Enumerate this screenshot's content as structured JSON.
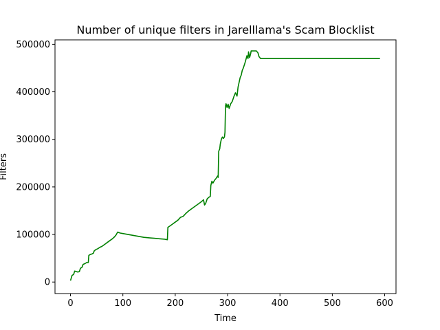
{
  "chart_data": {
    "type": "line",
    "title": "Number of unique filters in Jarelllama's Scam Blocklist",
    "xlabel": "Time",
    "ylabel": "Filters",
    "xlim": [
      -29.6,
      621.6
    ],
    "ylim": [
      -24250,
      509250
    ],
    "xticks": [
      0,
      100,
      200,
      300,
      400,
      500,
      600
    ],
    "yticks": [
      0,
      100000,
      200000,
      300000,
      400000,
      500000
    ],
    "xtick_labels": [
      "0",
      "100",
      "200",
      "300",
      "400",
      "500",
      "600"
    ],
    "ytick_labels": [
      "0",
      "100000",
      "200000",
      "300000",
      "400000",
      "500000"
    ],
    "grid": false,
    "series": [
      {
        "color": "#008000",
        "points": [
          [
            0,
            3000
          ],
          [
            3,
            14000
          ],
          [
            6,
            16000
          ],
          [
            8,
            23000
          ],
          [
            11,
            22000
          ],
          [
            14,
            21000
          ],
          [
            17,
            22000
          ],
          [
            19,
            29000
          ],
          [
            22,
            31000
          ],
          [
            24,
            37000
          ],
          [
            28,
            39000
          ],
          [
            31,
            41000
          ],
          [
            34,
            41000
          ],
          [
            35,
            56000
          ],
          [
            38,
            58000
          ],
          [
            41,
            59000
          ],
          [
            44,
            61000
          ],
          [
            45,
            65000
          ],
          [
            48,
            68000
          ],
          [
            52,
            70000
          ],
          [
            56,
            73000
          ],
          [
            60,
            75000
          ],
          [
            65,
            79000
          ],
          [
            70,
            83000
          ],
          [
            75,
            87000
          ],
          [
            80,
            91000
          ],
          [
            84,
            95000
          ],
          [
            87,
            99000
          ],
          [
            90,
            105000
          ],
          [
            95,
            103000
          ],
          [
            100,
            102000
          ],
          [
            110,
            100000
          ],
          [
            120,
            98000
          ],
          [
            130,
            96000
          ],
          [
            140,
            94000
          ],
          [
            150,
            93000
          ],
          [
            160,
            92000
          ],
          [
            170,
            91000
          ],
          [
            180,
            90000
          ],
          [
            185,
            89000
          ],
          [
            186,
            115000
          ],
          [
            190,
            118000
          ],
          [
            195,
            122000
          ],
          [
            200,
            126000
          ],
          [
            205,
            130000
          ],
          [
            210,
            136000
          ],
          [
            215,
            138000
          ],
          [
            220,
            144000
          ],
          [
            225,
            149000
          ],
          [
            230,
            153000
          ],
          [
            235,
            157000
          ],
          [
            240,
            161000
          ],
          [
            245,
            165000
          ],
          [
            250,
            169000
          ],
          [
            254,
            173000
          ],
          [
            256,
            162000
          ],
          [
            258,
            165000
          ],
          [
            261,
            175000
          ],
          [
            264,
            178000
          ],
          [
            267,
            180000
          ],
          [
            268,
            203000
          ],
          [
            270,
            212000
          ],
          [
            272,
            208000
          ],
          [
            275,
            214000
          ],
          [
            278,
            218000
          ],
          [
            281,
            223000
          ],
          [
            282,
            220000
          ],
          [
            283,
            275000
          ],
          [
            285,
            280000
          ],
          [
            286,
            290000
          ],
          [
            288,
            300000
          ],
          [
            290,
            305000
          ],
          [
            292,
            302000
          ],
          [
            294,
            305000
          ],
          [
            295,
            315000
          ],
          [
            296,
            370000
          ],
          [
            297,
            375000
          ],
          [
            299,
            367000
          ],
          [
            301,
            374000
          ],
          [
            303,
            365000
          ],
          [
            306,
            375000
          ],
          [
            309,
            380000
          ],
          [
            312,
            390000
          ],
          [
            315,
            398000
          ],
          [
            318,
            391000
          ],
          [
            320,
            410000
          ],
          [
            322,
            420000
          ],
          [
            324,
            430000
          ],
          [
            326,
            435000
          ],
          [
            328,
            445000
          ],
          [
            330,
            450000
          ],
          [
            333,
            460000
          ],
          [
            335,
            468000
          ],
          [
            337,
            476000
          ],
          [
            339,
            470000
          ],
          [
            340,
            484000
          ],
          [
            342,
            472000
          ],
          [
            344,
            480000
          ],
          [
            345,
            486000
          ],
          [
            348,
            486000
          ],
          [
            352,
            486000
          ],
          [
            355,
            486000
          ],
          [
            358,
            482000
          ],
          [
            360,
            474000
          ],
          [
            363,
            470000
          ],
          [
            370,
            470000
          ],
          [
            400,
            470000
          ],
          [
            500,
            470000
          ],
          [
            591,
            470000
          ]
        ]
      }
    ]
  }
}
